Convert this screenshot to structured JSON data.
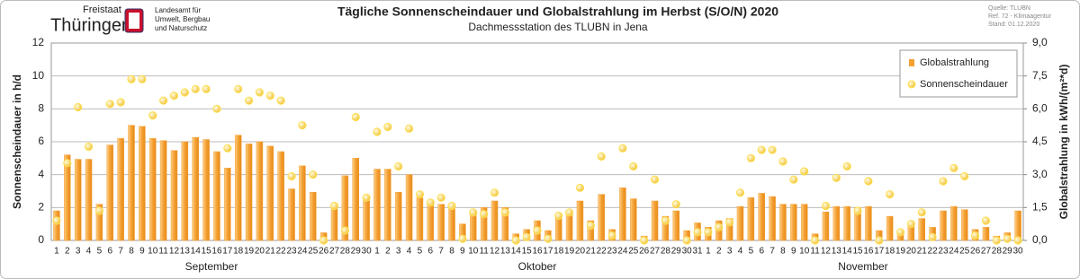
{
  "header": {
    "logo_state": "Freistaat",
    "logo_name": "Thüringen",
    "agency_lines": [
      "Landesamt für",
      "Umwelt, Bergbau",
      "und Naturschutz"
    ],
    "source_lines": [
      "Quelle: TLUBN",
      "Ref. 72 - Klimaagentur",
      "Stand: 01.12.2020"
    ]
  },
  "chart_data": {
    "type": "bar-dot",
    "title": "Tägliche Sonnenscheindauer und Globalstrahlung im Herbst (S/O/N) 2020",
    "subtitle": "Dachmessstation  des TLUBN  in Jena",
    "y_label": "Sonnenscheindauer  in h/d",
    "y2_label": "Globalstrahlung  in kWh/(m²*d)",
    "groups": [
      {
        "label": "September",
        "categories": [
          1,
          2,
          3,
          4,
          5,
          6,
          7,
          8,
          9,
          10,
          11,
          12,
          13,
          14,
          15,
          16,
          17,
          18,
          19,
          20,
          21,
          22,
          23,
          24,
          25,
          26,
          27,
          28,
          29,
          30
        ]
      },
      {
        "label": "Oktober",
        "categories": [
          1,
          2,
          3,
          4,
          5,
          6,
          7,
          8,
          9,
          10,
          11,
          12,
          13,
          14,
          15,
          16,
          17,
          18,
          19,
          20,
          21,
          22,
          23,
          24,
          25,
          26,
          27,
          28,
          29,
          30,
          31
        ]
      },
      {
        "label": "November",
        "categories": [
          1,
          2,
          3,
          4,
          5,
          6,
          7,
          8,
          9,
          10,
          11,
          12,
          13,
          14,
          15,
          16,
          17,
          18,
          19,
          20,
          21,
          22,
          23,
          24,
          25,
          26,
          27,
          28,
          29,
          30
        ]
      }
    ],
    "series": [
      {
        "name": "Globalstrahlung",
        "color": "#f5a033",
        "axis": "y2",
        "mark": "bar",
        "values": [
          1.35,
          3.9,
          3.7,
          3.7,
          1.65,
          4.35,
          4.65,
          5.25,
          5.2,
          4.65,
          4.55,
          4.1,
          4.5,
          4.7,
          4.6,
          4.05,
          3.3,
          4.8,
          4.4,
          4.5,
          4.3,
          4.05,
          2.35,
          3.4,
          2.2,
          0.35,
          1.6,
          2.95,
          3.75,
          1.95,
          3.25,
          3.25,
          2.2,
          3.0,
          1.95,
          1.65,
          1.65,
          1.65,
          0.75,
          1.3,
          1.5,
          1.8,
          1.5,
          0.3,
          0.5,
          0.9,
          0.45,
          1.2,
          1.35,
          1.8,
          0.9,
          2.1,
          0.5,
          2.4,
          1.9,
          0.2,
          1.8,
          1.1,
          1.35,
          0.45,
          0.8,
          0.6,
          0.9,
          1.0,
          1.55,
          1.95,
          2.15,
          2.0,
          1.65,
          1.65,
          1.65,
          0.3,
          1.3,
          1.55,
          1.55,
          1.5,
          1.55,
          0.45,
          1.1,
          0.35,
          0.7,
          1.0,
          0.6,
          1.35,
          1.55,
          1.4,
          0.5,
          0.6,
          0.2,
          0.35,
          1.35
        ]
      },
      {
        "name": "Sonnenscheindauer",
        "color": "#ffe04d",
        "mark": "dot",
        "values": [
          1.2,
          4.7,
          8.1,
          5.7,
          1.8,
          8.3,
          8.4,
          9.8,
          9.8,
          7.6,
          8.5,
          8.8,
          9.0,
          9.2,
          9.2,
          8.0,
          5.6,
          9.2,
          8.5,
          9.0,
          8.8,
          8.5,
          3.9,
          7.0,
          4.0,
          0.0,
          2.1,
          0.6,
          7.5,
          2.6,
          6.6,
          6.9,
          4.5,
          6.8,
          2.8,
          2.3,
          2.6,
          2.1,
          0.1,
          1.7,
          1.6,
          2.9,
          1.7,
          0.0,
          0.2,
          0.6,
          0.1,
          1.5,
          1.7,
          3.2,
          0.9,
          5.1,
          0.3,
          5.6,
          4.5,
          0.0,
          3.7,
          1.2,
          2.2,
          0.0,
          0.5,
          0.5,
          0.8,
          1.1,
          2.9,
          5.0,
          5.5,
          5.5,
          4.8,
          3.7,
          4.2,
          0.0,
          2.1,
          3.8,
          4.5,
          1.8,
          3.6,
          0.0,
          2.8,
          0.5,
          1.0,
          1.7,
          0.2,
          3.6,
          4.4,
          3.9,
          0.3,
          1.2,
          0.0,
          0.1,
          0.0
        ]
      }
    ],
    "ylim": [
      0,
      12
    ],
    "yticks": [
      0,
      2,
      4,
      6,
      8,
      10,
      12
    ],
    "y2lim": [
      0,
      9
    ],
    "y2ticks": [
      {
        "value": 0,
        "label": "0,0"
      },
      {
        "value": 1.5,
        "label": "1,5"
      },
      {
        "value": 3,
        "label": "3,0"
      },
      {
        "value": 4.5,
        "label": "4,5"
      },
      {
        "value": 6,
        "label": "6,0"
      },
      {
        "value": 7.5,
        "label": "7,5"
      },
      {
        "value": 9,
        "label": "9,0"
      }
    ],
    "grid": true,
    "legend": "upper right"
  }
}
